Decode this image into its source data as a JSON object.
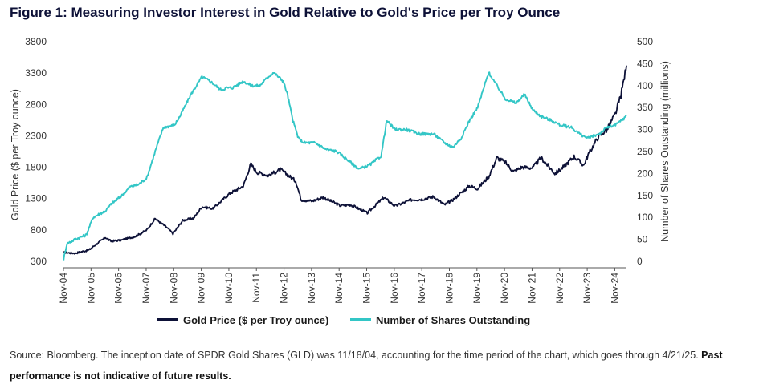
{
  "figure": {
    "title": "Figure 1: Measuring Investor Interest in Gold Relative to Gold's Price per Troy Ounce",
    "source_text": "Source: Bloomberg. The inception date of SPDR Gold Shares (GLD) was 11/18/04, accounting for the time period of the chart, which goes through 4/21/25.",
    "source_bold": "Past performance is not indicative of future results."
  },
  "colors": {
    "gold_price": "#0d1137",
    "shares": "#33c6c6",
    "axis_text": "#333333"
  },
  "chart_data": {
    "type": "line",
    "title": "Figure 1: Measuring Investor Interest in Gold Relative to Gold's Price per Troy Ounce",
    "x_tick_labels": [
      "Nov-04",
      "Nov-05",
      "Nov-06",
      "Nov-07",
      "Nov-08",
      "Nov-09",
      "Nov-10",
      "Nov-11",
      "Nov-12",
      "Nov-13",
      "Nov-14",
      "Nov-15",
      "Nov-16",
      "Nov-17",
      "Nov-18",
      "Nov-19",
      "Nov-20",
      "Nov-21",
      "Nov-22",
      "Nov-23",
      "Nov-24"
    ],
    "x_range": [
      2004.875,
      2025.3
    ],
    "y_left": {
      "label": "Gold Price ($ per Troy ounce)",
      "range": [
        300,
        3800
      ],
      "ticks": [
        300,
        800,
        1300,
        1800,
        2300,
        2800,
        3300,
        3800
      ]
    },
    "y_right": {
      "label": "Number of Shares Outstanding (millions)",
      "range": [
        0,
        500
      ],
      "ticks": [
        0,
        50,
        100,
        150,
        200,
        250,
        300,
        350,
        400,
        450,
        500
      ]
    },
    "legend_position": "bottom",
    "grid": false,
    "series": [
      {
        "name": "Gold Price ($ per Troy ounce)",
        "axis": "left",
        "x": [
          2004.88,
          2005.3,
          2005.8,
          2006.0,
          2006.4,
          2006.6,
          2007.0,
          2007.5,
          2007.9,
          2008.2,
          2008.6,
          2008.85,
          2009.2,
          2009.6,
          2009.9,
          2010.3,
          2010.9,
          2011.4,
          2011.67,
          2011.9,
          2012.3,
          2012.75,
          2013.0,
          2013.3,
          2013.5,
          2013.9,
          2014.3,
          2014.9,
          2015.3,
          2015.9,
          2016.5,
          2016.9,
          2017.5,
          2017.9,
          2018.3,
          2018.7,
          2019.0,
          2019.6,
          2019.9,
          2020.3,
          2020.6,
          2020.9,
          2021.2,
          2021.5,
          2021.9,
          2022.2,
          2022.7,
          2022.9,
          2023.4,
          2023.75,
          2023.9,
          2024.3,
          2024.6,
          2024.9,
          2025.1,
          2025.25,
          2025.3
        ],
        "y": [
          440,
          430,
          480,
          550,
          680,
          620,
          640,
          700,
          800,
          980,
          850,
          740,
          950,
          990,
          1170,
          1140,
          1380,
          1500,
          1850,
          1720,
          1670,
          1760,
          1680,
          1580,
          1280,
          1260,
          1320,
          1190,
          1200,
          1070,
          1320,
          1180,
          1280,
          1290,
          1330,
          1200,
          1280,
          1500,
          1460,
          1650,
          1950,
          1880,
          1730,
          1800,
          1790,
          1950,
          1700,
          1760,
          1970,
          1830,
          1990,
          2300,
          2400,
          2650,
          2950,
          3300,
          3420
        ]
      },
      {
        "name": "Number of Shares Outstanding",
        "axis": "right",
        "x": [
          2004.88,
          2005.0,
          2005.3,
          2005.7,
          2005.95,
          2006.4,
          2006.6,
          2007.0,
          2007.3,
          2007.6,
          2007.9,
          2008.2,
          2008.5,
          2008.9,
          2009.1,
          2009.5,
          2009.9,
          2010.2,
          2010.6,
          2010.8,
          2011.0,
          2011.4,
          2011.7,
          2012.0,
          2012.3,
          2012.5,
          2012.85,
          2013.0,
          2013.2,
          2013.4,
          2013.6,
          2014.0,
          2014.4,
          2014.8,
          2015.2,
          2015.6,
          2016.0,
          2016.4,
          2016.6,
          2016.9,
          2017.3,
          2017.8,
          2018.3,
          2018.7,
          2019.0,
          2019.3,
          2019.6,
          2019.9,
          2020.3,
          2020.6,
          2020.9,
          2021.3,
          2021.6,
          2021.9,
          2022.2,
          2022.6,
          2022.9,
          2023.3,
          2023.6,
          2023.9,
          2024.3,
          2024.6,
          2024.9,
          2025.1,
          2025.3
        ],
        "y": [
          5,
          40,
          50,
          60,
          100,
          115,
          130,
          150,
          170,
          175,
          190,
          250,
          305,
          310,
          330,
          380,
          420,
          410,
          390,
          395,
          395,
          410,
          400,
          400,
          420,
          430,
          410,
          380,
          320,
          280,
          270,
          270,
          255,
          250,
          230,
          210,
          220,
          240,
          320,
          300,
          300,
          290,
          290,
          270,
          260,
          280,
          320,
          350,
          430,
          400,
          370,
          360,
          380,
          345,
          330,
          320,
          310,
          305,
          290,
          280,
          290,
          305,
          310,
          320,
          330
        ]
      }
    ]
  }
}
